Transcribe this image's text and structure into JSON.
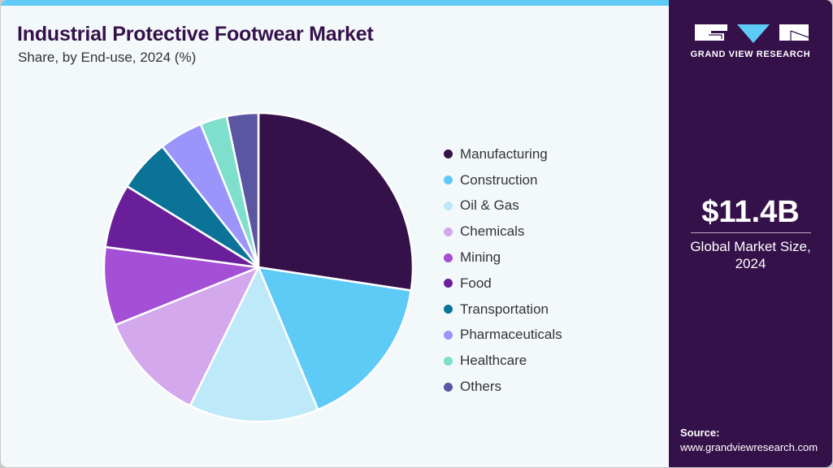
{
  "header": {
    "title": "Industrial Protective Footwear Market",
    "subtitle": "Share, by End-use, 2024 (%)"
  },
  "sidebar": {
    "brand": "GRAND VIEW RESEARCH",
    "market_value": "$11.4B",
    "market_label_line1": "Global Market Size,",
    "market_label_line2": "2024",
    "source_label": "Source:",
    "source_url": "www.grandviewresearch.com",
    "colors": {
      "background": "#35114a",
      "accent": "#5ecbf6"
    }
  },
  "chart_data": {
    "type": "pie",
    "title": "Industrial Protective Footwear Market",
    "subtitle": "Share, by End-use, 2024 (%)",
    "legend_position": "right",
    "start_angle": "12 o'clock, clockwise",
    "categories": [
      "Manufacturing",
      "Construction",
      "Oil & Gas",
      "Chemicals",
      "Mining",
      "Food",
      "Transportation",
      "Pharmaceuticals",
      "Healthcare",
      "Others"
    ],
    "values": [
      27.4,
      16.3,
      13.6,
      11.6,
      8.2,
      6.7,
      5.5,
      4.6,
      2.8,
      3.3
    ],
    "colors": [
      "#35114a",
      "#5ecbf6",
      "#bde9f9",
      "#d4a8ec",
      "#a34fd6",
      "#6a1f9a",
      "#0b7397",
      "#9b94fb",
      "#7ddfcc",
      "#5a56a1"
    ]
  },
  "legend": {
    "items": [
      {
        "label": "Manufacturing",
        "color": "#35114a"
      },
      {
        "label": "Construction",
        "color": "#5ecbf6"
      },
      {
        "label": "Oil & Gas",
        "color": "#bde9f9"
      },
      {
        "label": "Chemicals",
        "color": "#d4a8ec"
      },
      {
        "label": "Mining",
        "color": "#a34fd6"
      },
      {
        "label": "Food",
        "color": "#6a1f9a"
      },
      {
        "label": "Transportation",
        "color": "#0b7397"
      },
      {
        "label": "Pharmaceuticals",
        "color": "#9b94fb"
      },
      {
        "label": "Healthcare",
        "color": "#7ddfcc"
      },
      {
        "label": "Others",
        "color": "#5a56a1"
      }
    ]
  }
}
